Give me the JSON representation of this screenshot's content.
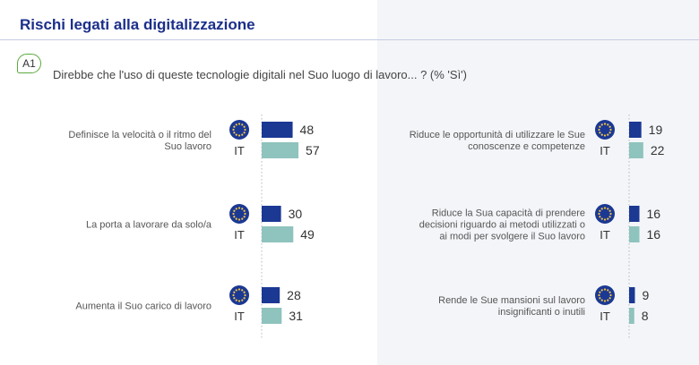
{
  "header": {
    "title": "Rischi legati alla digitalizzazione",
    "badge": "A1",
    "question": "Direbbe che l'uso di queste tecnologie digitali nel Suo luogo di lavoro... ? (% 'Sì')"
  },
  "colors": {
    "eu": "#1b3893",
    "it": "#8fc3bd",
    "star": "#f2c744"
  },
  "chart_data": {
    "type": "bar",
    "orientation": "horizontal",
    "series_labels": {
      "eu": "EU",
      "it": "IT"
    },
    "groups": [
      {
        "label": [
          "Definisce la velocità o il ritmo del",
          "Suo lavoro"
        ],
        "eu": 48,
        "it": 57
      },
      {
        "label": [
          "La porta a lavorare da solo/a"
        ],
        "eu": 30,
        "it": 49
      },
      {
        "label": [
          "Aumenta il Suo carico di lavoro"
        ],
        "eu": 28,
        "it": 31
      },
      {
        "label": [
          "Riduce le opportunità di utilizzare le Sue",
          "conoscenze e competenze"
        ],
        "eu": 19,
        "it": 22
      },
      {
        "label": [
          "Riduce la Sua capacità di prendere",
          "decisioni riguardo ai metodi utilizzati o",
          "ai modi per svolgere il Suo lavoro"
        ],
        "eu": 16,
        "it": 16
      },
      {
        "label": [
          "Rende le Sue mansioni sul lavoro",
          "insignificanti o inutili"
        ],
        "eu": 9,
        "it": 8
      }
    ]
  }
}
